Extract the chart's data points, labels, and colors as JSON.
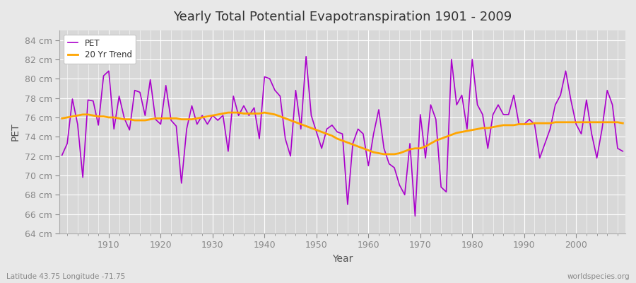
{
  "title": "Yearly Total Potential Evapotranspiration 1901 - 2009",
  "xlabel": "Year",
  "ylabel": "PET",
  "bottom_left_label": "Latitude 43.75 Longitude -71.75",
  "bottom_right_label": "worldspecies.org",
  "pet_color": "#AA00CC",
  "trend_color": "#FFA500",
  "outer_bg_color": "#E8E8E8",
  "plot_bg_color": "#D8D8D8",
  "ylim": [
    64,
    85
  ],
  "yticks": [
    64,
    66,
    68,
    70,
    72,
    74,
    76,
    78,
    80,
    82,
    84
  ],
  "ytick_labels": [
    "64 cm",
    "66 cm",
    "68 cm",
    "70 cm",
    "72 cm",
    "74 cm",
    "76 cm",
    "78 cm",
    "80 cm",
    "82 cm",
    "84 cm"
  ],
  "xticks": [
    1910,
    1920,
    1930,
    1940,
    1950,
    1960,
    1970,
    1980,
    1990,
    2000
  ],
  "years": [
    1901,
    1902,
    1903,
    1904,
    1905,
    1906,
    1907,
    1908,
    1909,
    1910,
    1911,
    1912,
    1913,
    1914,
    1915,
    1916,
    1917,
    1918,
    1919,
    1920,
    1921,
    1922,
    1923,
    1924,
    1925,
    1926,
    1927,
    1928,
    1929,
    1930,
    1931,
    1932,
    1933,
    1934,
    1935,
    1936,
    1937,
    1938,
    1939,
    1940,
    1941,
    1942,
    1943,
    1944,
    1945,
    1946,
    1947,
    1948,
    1949,
    1950,
    1951,
    1952,
    1953,
    1954,
    1955,
    1956,
    1957,
    1958,
    1959,
    1960,
    1961,
    1962,
    1963,
    1964,
    1965,
    1966,
    1967,
    1968,
    1969,
    1970,
    1971,
    1972,
    1973,
    1974,
    1975,
    1976,
    1977,
    1978,
    1979,
    1980,
    1981,
    1982,
    1983,
    1984,
    1985,
    1986,
    1987,
    1988,
    1989,
    1990,
    1991,
    1992,
    1993,
    1994,
    1995,
    1996,
    1997,
    1998,
    1999,
    2000,
    2001,
    2002,
    2003,
    2004,
    2005,
    2006,
    2007,
    2008,
    2009
  ],
  "pet_values": [
    72.1,
    73.3,
    77.9,
    75.3,
    69.8,
    77.8,
    77.7,
    75.2,
    80.3,
    80.8,
    74.8,
    78.2,
    75.9,
    74.7,
    78.8,
    78.6,
    76.2,
    79.9,
    75.8,
    75.3,
    79.3,
    75.7,
    75.1,
    69.2,
    74.8,
    77.2,
    75.3,
    76.2,
    75.3,
    76.2,
    75.7,
    76.2,
    72.5,
    78.2,
    76.2,
    77.2,
    76.2,
    77.0,
    73.8,
    80.2,
    80.0,
    78.8,
    78.2,
    73.8,
    72.0,
    78.8,
    74.8,
    82.3,
    76.2,
    74.5,
    72.8,
    74.8,
    75.2,
    74.5,
    74.3,
    67.0,
    73.3,
    74.8,
    74.3,
    71.0,
    74.3,
    76.8,
    72.8,
    71.2,
    70.8,
    69.0,
    68.0,
    73.3,
    65.8,
    76.3,
    71.8,
    77.3,
    75.8,
    68.8,
    68.3,
    82.0,
    77.3,
    78.3,
    74.8,
    82.0,
    77.3,
    76.3,
    72.8,
    76.3,
    77.3,
    76.3,
    76.3,
    78.3,
    75.3,
    75.3,
    75.8,
    75.3,
    71.8,
    73.3,
    74.8,
    77.3,
    78.3,
    80.8,
    77.8,
    75.3,
    74.3,
    77.8,
    74.3,
    71.8,
    74.8,
    78.8,
    77.3,
    72.8,
    72.5
  ],
  "trend_years": [
    1901,
    1902,
    1903,
    1904,
    1905,
    1906,
    1907,
    1908,
    1909,
    1910,
    1911,
    1912,
    1913,
    1914,
    1915,
    1916,
    1917,
    1918,
    1919,
    1920,
    1921,
    1922,
    1923,
    1924,
    1925,
    1926,
    1927,
    1928,
    1929,
    1930,
    1931,
    1932,
    1933,
    1934,
    1935,
    1936,
    1937,
    1938,
    1939,
    1940,
    1941,
    1942,
    1943,
    1944,
    1945,
    1946,
    1947,
    1948,
    1949,
    1950,
    1951,
    1952,
    1953,
    1954,
    1955,
    1956,
    1957,
    1958,
    1959,
    1960,
    1961,
    1962,
    1963,
    1964,
    1965,
    1966,
    1967,
    1968,
    1969,
    1970,
    1971,
    1972,
    1973,
    1974,
    1975,
    1976,
    1977,
    1978,
    1979,
    1980,
    1981,
    1982,
    1983,
    1984,
    1985,
    1986,
    1987,
    1988,
    1989,
    1990,
    1991,
    1992,
    1993,
    1994,
    1995,
    1996,
    1997,
    1998,
    1999,
    2000,
    2001,
    2002,
    2003,
    2004,
    2005,
    2006,
    2007,
    2008,
    2009
  ],
  "trend_values": [
    75.9,
    76.0,
    76.1,
    76.2,
    76.3,
    76.3,
    76.2,
    76.1,
    76.1,
    76.0,
    76.0,
    75.9,
    75.8,
    75.8,
    75.7,
    75.7,
    75.7,
    75.8,
    75.9,
    75.9,
    75.9,
    75.9,
    75.9,
    75.8,
    75.8,
    75.8,
    75.9,
    76.0,
    76.1,
    76.2,
    76.3,
    76.4,
    76.5,
    76.5,
    76.5,
    76.4,
    76.4,
    76.4,
    76.4,
    76.5,
    76.4,
    76.3,
    76.1,
    75.9,
    75.7,
    75.5,
    75.3,
    75.1,
    74.9,
    74.7,
    74.5,
    74.3,
    74.1,
    73.8,
    73.6,
    73.4,
    73.2,
    73.0,
    72.8,
    72.6,
    72.4,
    72.3,
    72.2,
    72.2,
    72.2,
    72.3,
    72.5,
    72.7,
    72.8,
    72.8,
    73.0,
    73.3,
    73.6,
    73.8,
    74.0,
    74.2,
    74.4,
    74.5,
    74.6,
    74.7,
    74.8,
    74.9,
    74.9,
    75.0,
    75.1,
    75.2,
    75.2,
    75.2,
    75.3,
    75.3,
    75.3,
    75.4,
    75.4,
    75.4,
    75.4,
    75.5,
    75.5,
    75.5,
    75.5,
    75.5,
    75.5,
    75.5,
    75.5,
    75.5,
    75.5,
    75.5,
    75.5,
    75.5,
    75.4
  ]
}
